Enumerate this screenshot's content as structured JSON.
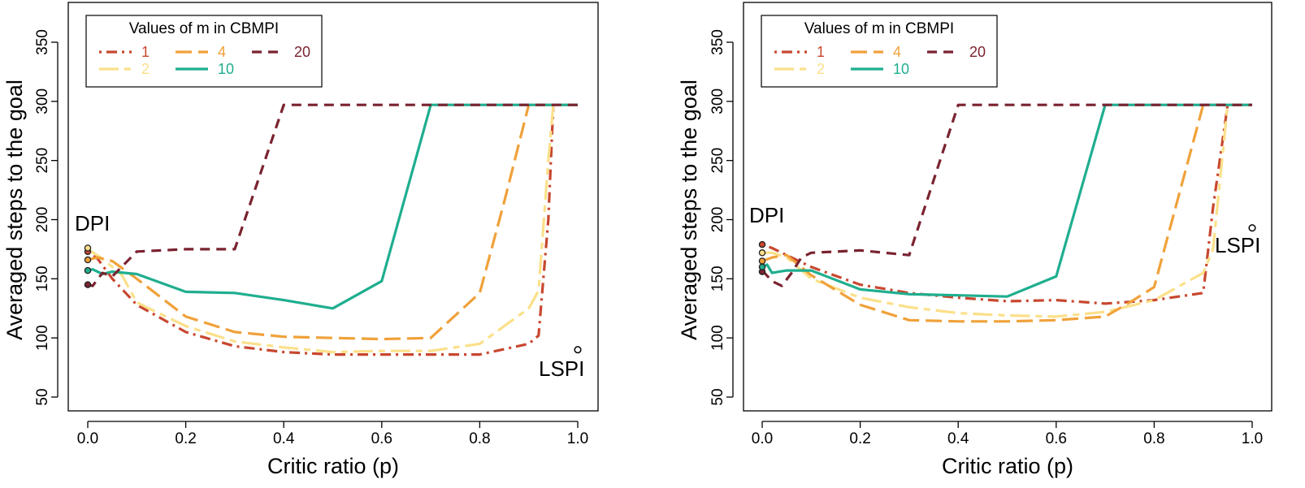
{
  "chart_data": [
    {
      "type": "line",
      "title": "",
      "xlabel": "Critic ratio (p)",
      "ylabel": "Averaged steps to the goal",
      "xlim": [
        0,
        1
      ],
      "ylim": [
        50,
        350
      ],
      "xticks": [
        "0.0",
        "0.2",
        "0.4",
        "0.6",
        "0.8",
        "1.0"
      ],
      "yticks": [
        "50",
        "100",
        "150",
        "200",
        "250",
        "300",
        "350"
      ],
      "legend": {
        "title": "Values of m in CBMPI",
        "placement": "top-left",
        "entries": [
          {
            "label": "1",
            "color": "#c8472f",
            "dash": "dotdash"
          },
          {
            "label": "4",
            "color": "#f0a13a",
            "dash": "longdash"
          },
          {
            "label": "20",
            "color": "#7a2330",
            "dash": "dashed"
          },
          {
            "label": "2",
            "color": "#fbe08a",
            "dash": "twodash"
          },
          {
            "label": "10",
            "color": "#1fae8f",
            "dash": "solid"
          }
        ]
      },
      "annotations": {
        "dpi": "DPI",
        "lspi": "LSPI"
      },
      "lspi_point": [
        1.0,
        90
      ],
      "series": [
        {
          "name": "1",
          "color": "#c8472f",
          "dash": "dotdash",
          "x": [
            0,
            0.02,
            0.05,
            0.1,
            0.2,
            0.3,
            0.4,
            0.5,
            0.6,
            0.7,
            0.8,
            0.9,
            0.92,
            0.94,
            0.95
          ],
          "y": [
            173,
            167,
            150,
            128,
            105,
            93,
            88,
            86,
            86,
            86,
            86,
            95,
            102,
            200,
            297
          ]
        },
        {
          "name": "2",
          "color": "#fbe08a",
          "dash": "twodash",
          "x": [
            0,
            0.03,
            0.07,
            0.1,
            0.2,
            0.3,
            0.4,
            0.5,
            0.6,
            0.7,
            0.8,
            0.9,
            0.92,
            0.94,
            0.95
          ],
          "y": [
            175,
            167,
            153,
            130,
            110,
            97,
            92,
            88,
            89,
            89,
            95,
            125,
            140,
            250,
            297
          ]
        },
        {
          "name": "4",
          "color": "#f0a13a",
          "dash": "longdash",
          "x": [
            0,
            0.02,
            0.05,
            0.1,
            0.2,
            0.3,
            0.4,
            0.5,
            0.6,
            0.7,
            0.8,
            0.85,
            0.9,
            0.95,
            1.0
          ],
          "y": [
            166,
            168,
            165,
            150,
            118,
            105,
            101,
            100,
            99,
            100,
            138,
            215,
            297,
            297,
            297
          ]
        },
        {
          "name": "10",
          "color": "#1fae8f",
          "dash": "solid",
          "x": [
            0,
            0.01,
            0.03,
            0.05,
            0.1,
            0.2,
            0.3,
            0.4,
            0.5,
            0.6,
            0.7,
            0.8,
            0.9,
            1.0
          ],
          "y": [
            157,
            158,
            154,
            156,
            154,
            139,
            138,
            132,
            125,
            148,
            297,
            297,
            297,
            297
          ]
        },
        {
          "name": "20",
          "color": "#7a2330",
          "dash": "dashed",
          "x": [
            0,
            0.01,
            0.03,
            0.05,
            0.1,
            0.2,
            0.3,
            0.4,
            0.5,
            0.6,
            0.7,
            0.8,
            0.9,
            1.0
          ],
          "y": [
            145,
            144,
            155,
            152,
            173,
            175,
            175,
            297,
            297,
            297,
            297,
            297,
            297,
            297
          ]
        }
      ],
      "dpi_points": [
        {
          "y": 145,
          "color": "#7a2330"
        },
        {
          "y": 157,
          "color": "#1fae8f"
        },
        {
          "y": 166,
          "color": "#f0a13a"
        },
        {
          "y": 173,
          "color": "#c8472f"
        },
        {
          "y": 176,
          "color": "#fbe08a"
        }
      ]
    },
    {
      "type": "line",
      "title": "",
      "xlabel": "Critic ratio (p)",
      "ylabel": "Averaged steps to the goal",
      "xlim": [
        0,
        1
      ],
      "ylim": [
        50,
        350
      ],
      "xticks": [
        "0.0",
        "0.2",
        "0.4",
        "0.6",
        "0.8",
        "1.0"
      ],
      "yticks": [
        "50",
        "100",
        "150",
        "200",
        "250",
        "300",
        "350"
      ],
      "legend": {
        "title": "Values of m in CBMPI",
        "placement": "top-left",
        "entries": [
          {
            "label": "1",
            "color": "#c8472f",
            "dash": "dotdash"
          },
          {
            "label": "4",
            "color": "#f0a13a",
            "dash": "longdash"
          },
          {
            "label": "20",
            "color": "#7a2330",
            "dash": "dashed"
          },
          {
            "label": "2",
            "color": "#fbe08a",
            "dash": "twodash"
          },
          {
            "label": "10",
            "color": "#1fae8f",
            "dash": "solid"
          }
        ]
      },
      "annotations": {
        "dpi": "DPI",
        "lspi": "LSPI"
      },
      "lspi_point": [
        1.0,
        193
      ],
      "series": [
        {
          "name": "1",
          "color": "#c8472f",
          "dash": "dotdash",
          "x": [
            0,
            0.02,
            0.05,
            0.1,
            0.2,
            0.3,
            0.4,
            0.5,
            0.6,
            0.7,
            0.8,
            0.9,
            0.92,
            0.95
          ],
          "y": [
            179,
            176,
            170,
            160,
            145,
            138,
            134,
            131,
            132,
            129,
            132,
            138,
            210,
            297
          ]
        },
        {
          "name": "2",
          "color": "#fbe08a",
          "dash": "twodash",
          "x": [
            0,
            0.02,
            0.05,
            0.1,
            0.2,
            0.3,
            0.4,
            0.5,
            0.6,
            0.7,
            0.8,
            0.9,
            0.92,
            0.95
          ],
          "y": [
            172,
            172,
            168,
            150,
            134,
            126,
            121,
            119,
            118,
            122,
            132,
            155,
            175,
            297
          ]
        },
        {
          "name": "4",
          "color": "#f0a13a",
          "dash": "longdash",
          "x": [
            0,
            0.02,
            0.05,
            0.1,
            0.2,
            0.3,
            0.4,
            0.5,
            0.6,
            0.7,
            0.75,
            0.8,
            0.85,
            0.9,
            0.95,
            1.0
          ],
          "y": [
            165,
            168,
            170,
            153,
            128,
            115,
            114,
            114,
            115,
            118,
            130,
            143,
            220,
            297,
            297,
            297
          ]
        },
        {
          "name": "10",
          "color": "#1fae8f",
          "dash": "solid",
          "x": [
            0,
            0.01,
            0.02,
            0.05,
            0.1,
            0.2,
            0.3,
            0.4,
            0.5,
            0.6,
            0.7,
            0.8,
            0.9,
            1.0
          ],
          "y": [
            160,
            162,
            155,
            157,
            157,
            141,
            137,
            136,
            135,
            152,
            297,
            297,
            297,
            297
          ]
        },
        {
          "name": "20",
          "color": "#7a2330",
          "dash": "dashed",
          "x": [
            0,
            0.02,
            0.04,
            0.06,
            0.08,
            0.1,
            0.2,
            0.3,
            0.4,
            0.5,
            0.6,
            0.7,
            0.8,
            0.9,
            1.0
          ],
          "y": [
            157,
            148,
            144,
            155,
            168,
            172,
            174,
            170,
            297,
            297,
            297,
            297,
            297,
            297,
            297
          ]
        }
      ],
      "dpi_points": [
        {
          "y": 156,
          "color": "#7a2330"
        },
        {
          "y": 160,
          "color": "#1fae8f"
        },
        {
          "y": 165,
          "color": "#f0a13a"
        },
        {
          "y": 172,
          "color": "#fbe08a"
        },
        {
          "y": 179,
          "color": "#c8472f"
        }
      ]
    }
  ]
}
